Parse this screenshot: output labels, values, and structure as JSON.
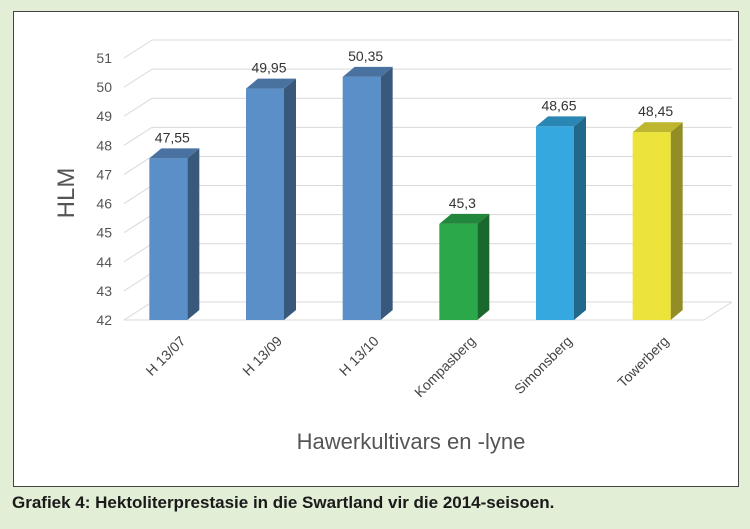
{
  "caption": "Grafiek 4: Hektoliterprestasie in die Swartland vir die 2014-seisoen.",
  "chart_data": {
    "type": "bar",
    "title": "",
    "xlabel": "Hawerkultivars en -lyne",
    "ylabel": "HLM",
    "ylim": [
      42,
      51
    ],
    "yticks": [
      42,
      43,
      44,
      45,
      46,
      47,
      48,
      49,
      50,
      51
    ],
    "grid": true,
    "legend": "none",
    "categories": [
      "H 13/07",
      "H 13/09",
      "H 13/10",
      "Kompasberg",
      "Simonsberg",
      "Towerberg"
    ],
    "values": [
      47.55,
      49.95,
      50.35,
      45.3,
      48.65,
      48.45
    ],
    "value_labels": [
      "47,55",
      "49,95",
      "50,35",
      "45,3",
      "48,65",
      "48,45"
    ],
    "colors": [
      "#5b8fc8",
      "#5b8fc8",
      "#5b8fc8",
      "#2ba84a",
      "#35a8e0",
      "#ece43a"
    ]
  }
}
